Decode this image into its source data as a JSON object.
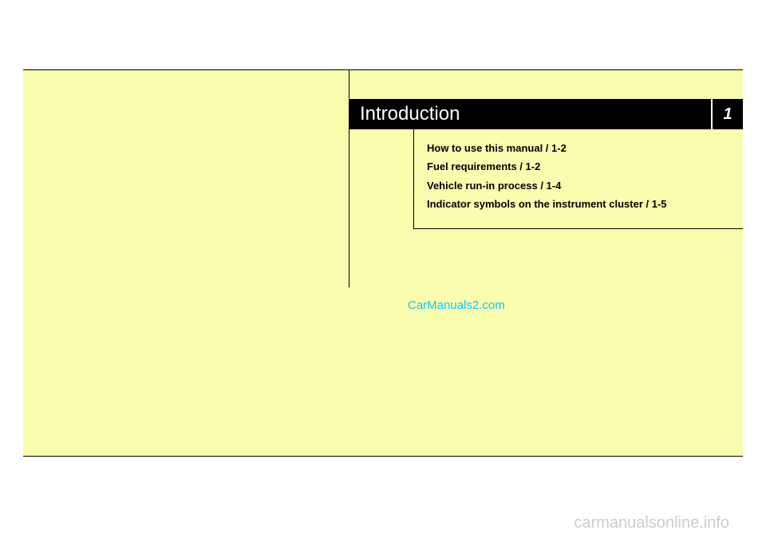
{
  "chapter": {
    "title": "Introduction",
    "number": "1"
  },
  "toc": {
    "items": [
      "How to use this manual / 1-2",
      "Fuel requirements / 1-2",
      "Vehicle run-in process / 1-4",
      "Indicator symbols on the instrument cluster / 1-5"
    ]
  },
  "watermarks": {
    "center": "CarManuals2.com",
    "bottom": "carmanualsonline.info"
  },
  "colors": {
    "page_background": "#fbfdae",
    "header_background": "#000000",
    "header_text": "#ffffff",
    "body_background": "#ffffff",
    "divider": "#000000",
    "toc_text": "#000000",
    "watermark_center": "#0dc7ff",
    "watermark_bottom": "#cccccc"
  }
}
